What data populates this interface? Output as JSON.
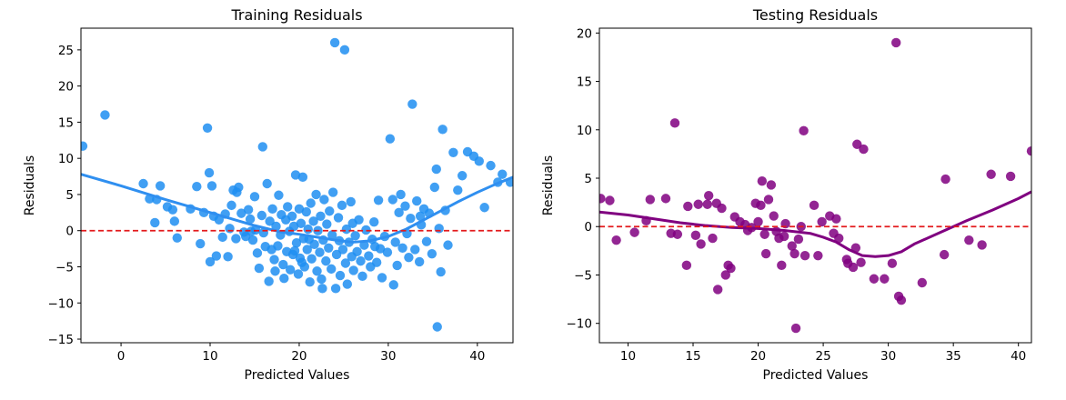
{
  "chart_data": [
    {
      "type": "scatter",
      "title": "Training Residuals",
      "xlabel": "Predicted Values",
      "ylabel": "Residuals",
      "xlim": [
        -4.5,
        44
      ],
      "ylim": [
        -15.5,
        28
      ],
      "xticks": [
        0,
        10,
        20,
        30,
        40
      ],
      "yticks": [
        -15,
        -10,
        -5,
        0,
        5,
        10,
        15,
        20,
        25
      ],
      "point_color": "#1f8ef1",
      "line_color": "#2f8ff0",
      "zero_line_color": "#e31a1c",
      "points": [
        [
          -4.3,
          11.7
        ],
        [
          -1.8,
          16.0
        ],
        [
          2.5,
          6.5
        ],
        [
          3.2,
          4.4
        ],
        [
          3.8,
          1.1
        ],
        [
          4.0,
          4.3
        ],
        [
          4.4,
          6.2
        ],
        [
          5.2,
          3.3
        ],
        [
          5.8,
          2.9
        ],
        [
          6.0,
          1.3
        ],
        [
          6.3,
          -1.0
        ],
        [
          7.8,
          3.0
        ],
        [
          8.5,
          6.1
        ],
        [
          8.9,
          -1.8
        ],
        [
          9.3,
          2.5
        ],
        [
          9.7,
          14.2
        ],
        [
          9.9,
          8.0
        ],
        [
          10.0,
          -4.3
        ],
        [
          10.2,
          6.2
        ],
        [
          10.4,
          2.0
        ],
        [
          10.7,
          -3.5
        ],
        [
          11.0,
          1.5
        ],
        [
          11.4,
          -0.9
        ],
        [
          11.7,
          2.3
        ],
        [
          12.0,
          -3.6
        ],
        [
          12.2,
          0.3
        ],
        [
          12.4,
          3.5
        ],
        [
          12.6,
          5.6
        ],
        [
          12.9,
          -1.1
        ],
        [
          13.2,
          6.0
        ],
        [
          13.5,
          2.4
        ],
        [
          13.8,
          -0.2
        ],
        [
          14.0,
          -0.8
        ],
        [
          14.3,
          2.9
        ],
        [
          14.5,
          1.6
        ],
        [
          14.8,
          -1.3
        ],
        [
          15.0,
          4.7
        ],
        [
          15.1,
          0.1
        ],
        [
          15.3,
          -3.1
        ],
        [
          15.5,
          -5.2
        ],
        [
          15.8,
          2.1
        ],
        [
          15.9,
          11.6
        ],
        [
          16.0,
          -0.3
        ],
        [
          16.2,
          -2.2
        ],
        [
          16.4,
          6.5
        ],
        [
          16.6,
          -7.0
        ],
        [
          16.7,
          1.3
        ],
        [
          16.9,
          -2.6
        ],
        [
          17.0,
          3.0
        ],
        [
          17.2,
          -4.0
        ],
        [
          17.3,
          -5.6
        ],
        [
          17.4,
          0.6
        ],
        [
          17.6,
          -2.1
        ],
        [
          17.7,
          4.9
        ],
        [
          17.9,
          -0.6
        ],
        [
          18.0,
          2.2
        ],
        [
          18.2,
          -4.7
        ],
        [
          18.3,
          -6.6
        ],
        [
          18.5,
          1.5
        ],
        [
          18.6,
          -2.9
        ],
        [
          18.7,
          3.3
        ],
        [
          18.9,
          -0.1
        ],
        [
          19.0,
          -5.4
        ],
        [
          19.2,
          2.0
        ],
        [
          19.3,
          -3.3
        ],
        [
          19.4,
          0.6
        ],
        [
          19.6,
          7.7
        ],
        [
          19.7,
          -1.7
        ],
        [
          19.9,
          -6.0
        ],
        [
          20.0,
          3.0
        ],
        [
          20.1,
          -3.8
        ],
        [
          20.2,
          1.0
        ],
        [
          20.4,
          7.4
        ],
        [
          20.5,
          -1.1
        ],
        [
          20.6,
          -5.0
        ],
        [
          20.8,
          2.6
        ],
        [
          20.9,
          -2.6
        ],
        [
          21.0,
          0.2
        ],
        [
          21.2,
          -7.1
        ],
        [
          21.3,
          3.8
        ],
        [
          21.4,
          -3.9
        ],
        [
          21.6,
          1.3
        ],
        [
          21.7,
          -1.9
        ],
        [
          21.9,
          5.0
        ],
        [
          22.0,
          -5.6
        ],
        [
          22.1,
          0.0
        ],
        [
          22.3,
          -3.0
        ],
        [
          22.4,
          2.0
        ],
        [
          22.5,
          -6.7
        ],
        [
          22.7,
          -1.3
        ],
        [
          22.8,
          4.3
        ],
        [
          23.0,
          -4.2
        ],
        [
          23.1,
          0.9
        ],
        [
          23.3,
          -2.4
        ],
        [
          23.4,
          2.7
        ],
        [
          23.6,
          -5.3
        ],
        [
          23.7,
          -0.6
        ],
        [
          23.8,
          5.3
        ],
        [
          24.0,
          26.0
        ],
        [
          24.1,
          -8.0
        ],
        [
          24.2,
          -3.3
        ],
        [
          24.4,
          1.8
        ],
        [
          24.5,
          -1.4
        ],
        [
          24.6,
          -6.2
        ],
        [
          24.8,
          3.5
        ],
        [
          24.9,
          -2.6
        ],
        [
          25.1,
          25.0
        ],
        [
          25.2,
          -4.5
        ],
        [
          25.3,
          0.2
        ],
        [
          25.4,
          -7.4
        ],
        [
          25.6,
          -1.6
        ],
        [
          25.8,
          4.0
        ],
        [
          25.9,
          -3.6
        ],
        [
          26.1,
          -5.5
        ],
        [
          26.3,
          -0.7
        ],
        [
          26.5,
          -2.9
        ],
        [
          26.7,
          1.5
        ],
        [
          26.9,
          -4.2
        ],
        [
          27.1,
          -6.3
        ],
        [
          27.3,
          -2.0
        ],
        [
          27.5,
          0.1
        ],
        [
          27.8,
          -3.5
        ],
        [
          28.0,
          -5.0
        ],
        [
          28.2,
          -1.2
        ],
        [
          28.4,
          1.2
        ],
        [
          28.7,
          -4.4
        ],
        [
          28.9,
          4.2
        ],
        [
          29.1,
          -2.5
        ],
        [
          29.3,
          -6.5
        ],
        [
          29.6,
          -0.8
        ],
        [
          29.9,
          -3.0
        ],
        [
          30.2,
          12.7
        ],
        [
          30.5,
          4.3
        ],
        [
          30.8,
          -1.6
        ],
        [
          31.0,
          -4.8
        ],
        [
          31.2,
          2.5
        ],
        [
          31.4,
          5.0
        ],
        [
          31.6,
          -2.4
        ],
        [
          31.9,
          3.4
        ],
        [
          32.1,
          -0.4
        ],
        [
          32.3,
          -3.7
        ],
        [
          32.5,
          1.7
        ],
        [
          32.7,
          17.5
        ],
        [
          33.0,
          -2.6
        ],
        [
          33.2,
          4.1
        ],
        [
          33.5,
          -4.3
        ],
        [
          33.7,
          0.8
        ],
        [
          34.0,
          3.0
        ],
        [
          34.3,
          -1.5
        ],
        [
          34.6,
          2.4
        ],
        [
          34.9,
          -3.2
        ],
        [
          35.2,
          6.0
        ],
        [
          35.4,
          8.5
        ],
        [
          35.5,
          -13.3
        ],
        [
          35.7,
          0.3
        ],
        [
          35.9,
          -5.7
        ],
        [
          36.1,
          14.0
        ],
        [
          36.4,
          2.8
        ],
        [
          36.7,
          -2.0
        ],
        [
          37.3,
          10.8
        ],
        [
          37.8,
          5.6
        ],
        [
          38.3,
          7.6
        ],
        [
          38.9,
          10.9
        ],
        [
          39.6,
          10.3
        ],
        [
          40.2,
          9.6
        ],
        [
          40.8,
          3.2
        ],
        [
          41.5,
          9.0
        ],
        [
          42.3,
          6.7
        ],
        [
          42.8,
          7.8
        ],
        [
          43.7,
          6.7
        ],
        [
          13.0,
          5.3
        ],
        [
          14.6,
          -0.1
        ],
        [
          19.5,
          -2.8
        ],
        [
          21.1,
          -1.2
        ],
        [
          26.0,
          1.0
        ],
        [
          28.5,
          -2.2
        ],
        [
          30.6,
          -7.5
        ],
        [
          33.6,
          2.0
        ],
        [
          22.6,
          -8.0
        ],
        [
          20.3,
          -4.4
        ]
      ],
      "trend": [
        [
          -4.5,
          7.8
        ],
        [
          0,
          6.2
        ],
        [
          5,
          4.3
        ],
        [
          10,
          2.5
        ],
        [
          15,
          0.7
        ],
        [
          18,
          -0.2
        ],
        [
          20,
          -0.5
        ],
        [
          22,
          -0.9
        ],
        [
          24,
          -1.3
        ],
        [
          26,
          -1.6
        ],
        [
          28,
          -1.4
        ],
        [
          30,
          -0.8
        ],
        [
          32,
          0.2
        ],
        [
          34,
          1.5
        ],
        [
          36,
          2.8
        ],
        [
          38,
          4.1
        ],
        [
          40,
          5.3
        ],
        [
          42,
          6.4
        ],
        [
          44,
          7.4
        ]
      ]
    },
    {
      "type": "scatter",
      "title": "Testing Residuals",
      "xlabel": "Predicted Values",
      "ylabel": "Residuals",
      "xlim": [
        7.8,
        41
      ],
      "ylim": [
        -12,
        20.5
      ],
      "xticks": [
        10,
        15,
        20,
        25,
        30,
        35,
        40
      ],
      "yticks": [
        -10,
        -5,
        0,
        5,
        10,
        15,
        20
      ],
      "point_color": "#800080",
      "line_color": "#800080",
      "zero_line_color": "#e31a1c",
      "points": [
        [
          7.9,
          2.9
        ],
        [
          8.6,
          2.7
        ],
        [
          9.1,
          -1.4
        ],
        [
          10.5,
          -0.6
        ],
        [
          11.4,
          0.6
        ],
        [
          11.7,
          2.8
        ],
        [
          12.9,
          2.9
        ],
        [
          13.3,
          -0.7
        ],
        [
          13.6,
          10.7
        ],
        [
          13.8,
          -0.8
        ],
        [
          14.5,
          -4.0
        ],
        [
          14.6,
          2.1
        ],
        [
          15.2,
          -0.9
        ],
        [
          15.4,
          2.3
        ],
        [
          15.6,
          -1.8
        ],
        [
          16.1,
          2.3
        ],
        [
          16.2,
          3.2
        ],
        [
          16.5,
          -1.2
        ],
        [
          16.9,
          -6.5
        ],
        [
          17.2,
          1.9
        ],
        [
          17.5,
          -5.0
        ],
        [
          17.7,
          -4.0
        ],
        [
          17.9,
          -4.3
        ],
        [
          18.2,
          1.0
        ],
        [
          18.6,
          0.5
        ],
        [
          19.0,
          0.2
        ],
        [
          19.2,
          -0.4
        ],
        [
          19.8,
          2.4
        ],
        [
          20.0,
          0.5
        ],
        [
          20.2,
          2.2
        ],
        [
          20.3,
          4.7
        ],
        [
          20.5,
          -0.8
        ],
        [
          20.6,
          -2.8
        ],
        [
          20.8,
          2.8
        ],
        [
          21.0,
          4.3
        ],
        [
          21.2,
          1.1
        ],
        [
          21.4,
          -0.5
        ],
        [
          21.6,
          -1.2
        ],
        [
          21.8,
          -4.0
        ],
        [
          22.1,
          0.3
        ],
        [
          22.6,
          -2.0
        ],
        [
          22.8,
          -2.8
        ],
        [
          22.9,
          -10.5
        ],
        [
          23.1,
          -1.3
        ],
        [
          23.3,
          0.0
        ],
        [
          23.5,
          9.9
        ],
        [
          23.6,
          -3.0
        ],
        [
          24.3,
          2.2
        ],
        [
          24.6,
          -3.0
        ],
        [
          24.9,
          0.5
        ],
        [
          25.5,
          1.1
        ],
        [
          25.8,
          -0.7
        ],
        [
          26.2,
          -1.2
        ],
        [
          26.8,
          -3.4
        ],
        [
          26.9,
          -3.8
        ],
        [
          27.3,
          -4.2
        ],
        [
          27.5,
          -2.2
        ],
        [
          27.6,
          8.5
        ],
        [
          27.9,
          -3.7
        ],
        [
          28.1,
          8.0
        ],
        [
          28.9,
          -5.4
        ],
        [
          29.7,
          -5.4
        ],
        [
          30.3,
          -3.8
        ],
        [
          30.6,
          19.0
        ],
        [
          30.8,
          -7.2
        ],
        [
          31.0,
          -7.6
        ],
        [
          32.6,
          -5.8
        ],
        [
          34.3,
          -2.9
        ],
        [
          34.4,
          4.9
        ],
        [
          36.2,
          -1.4
        ],
        [
          37.2,
          -1.9
        ],
        [
          37.9,
          5.4
        ],
        [
          39.4,
          5.2
        ],
        [
          41.0,
          7.8
        ],
        [
          22.0,
          -1.0
        ],
        [
          26.0,
          0.8
        ],
        [
          16.8,
          2.4
        ],
        [
          19.5,
          -0.1
        ]
      ],
      "trend": [
        [
          7.8,
          1.5
        ],
        [
          10,
          1.2
        ],
        [
          12,
          0.8
        ],
        [
          14,
          0.4
        ],
        [
          16,
          0.1
        ],
        [
          18,
          -0.1
        ],
        [
          20,
          -0.2
        ],
        [
          22,
          -0.4
        ],
        [
          24,
          -0.7
        ],
        [
          25,
          -1.1
        ],
        [
          26,
          -1.6
        ],
        [
          27,
          -2.4
        ],
        [
          28,
          -3.0
        ],
        [
          29,
          -3.1
        ],
        [
          30,
          -3.0
        ],
        [
          31,
          -2.6
        ],
        [
          32,
          -1.8
        ],
        [
          34,
          -0.6
        ],
        [
          36,
          0.6
        ],
        [
          38,
          1.7
        ],
        [
          40,
          2.9
        ],
        [
          41,
          3.6
        ]
      ]
    }
  ]
}
